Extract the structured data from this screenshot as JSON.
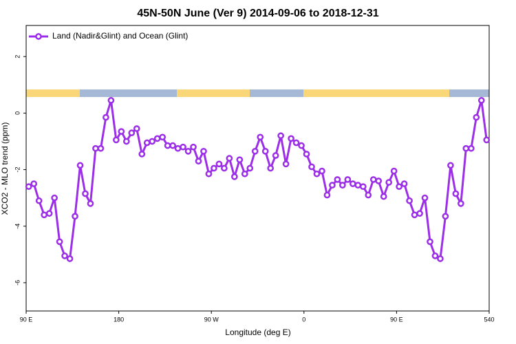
{
  "chart_data": {
    "type": "line",
    "title": "45N-50N June (Ver 9)   2014-09-06 to 2018-12-31",
    "x_label": "Longitude (deg E)",
    "y_label": "XCO2 - MLO trend (ppm)",
    "legend_position": "upper left",
    "xlim": [
      90,
      540
    ],
    "ylim": [
      -7,
      3.1
    ],
    "xticks": [
      {
        "value": 90,
        "label": "90 E"
      },
      180,
      {
        "value": 270,
        "label": "90 W"
      },
      {
        "value": 360,
        "label": "0"
      },
      {
        "value": 450,
        "label": "90 E"
      },
      540
    ],
    "yticks": [
      -6,
      -4,
      -2,
      0,
      2
    ],
    "x": [
      92.5,
      97.5,
      102.5,
      107.5,
      112.5,
      117.5,
      122.5,
      127.5,
      132.5,
      137.5,
      142.5,
      147.5,
      152.5,
      157.5,
      162.5,
      167.5,
      172.5,
      177.5,
      182.5,
      187.5,
      192.5,
      197.5,
      202.5,
      207.5,
      212.5,
      217.5,
      222.5,
      227.5,
      232.5,
      237.5,
      242.5,
      247.5,
      252.5,
      257.5,
      262.5,
      267.5,
      272.5,
      277.5,
      282.5,
      287.5,
      292.5,
      297.5,
      302.5,
      307.5,
      312.5,
      317.5,
      322.5,
      327.5,
      332.5,
      337.5,
      342.5,
      347.5,
      352.5,
      357.5,
      362.5,
      367.5,
      372.5,
      377.5,
      382.5,
      387.5,
      392.5,
      397.5,
      402.5,
      407.5,
      412.5,
      417.5,
      422.5,
      427.5,
      432.5,
      437.5,
      442.5,
      447.5,
      452.5,
      457.5,
      462.5,
      467.5,
      472.5,
      477.5,
      482.5,
      487.5,
      492.5,
      497.5,
      502.5,
      507.5,
      512.5,
      517.5,
      522.5,
      527.5,
      532.5,
      537.5
    ],
    "series": [
      {
        "name": "Land (Nadir&Glint) and Ocean (Glint)",
        "color": "#9b2ee6",
        "values": [
          -2.6,
          -2.5,
          -3.1,
          -3.6,
          -3.55,
          -3.0,
          -4.55,
          -5.05,
          -5.15,
          -3.65,
          -1.85,
          -2.85,
          -3.2,
          -1.25,
          -1.25,
          -0.15,
          0.45,
          -0.95,
          -0.65,
          -1.0,
          -0.7,
          -0.55,
          -1.45,
          -1.05,
          -1.0,
          -0.9,
          -0.85,
          -1.15,
          -1.15,
          -1.25,
          -1.2,
          -1.35,
          -1.2,
          -1.7,
          -1.35,
          -2.15,
          -1.95,
          -1.8,
          -1.95,
          -1.6,
          -2.25,
          -1.65,
          -2.15,
          -1.95,
          -1.35,
          -0.85,
          -1.35,
          -1.95,
          -1.5,
          -0.8,
          -1.8,
          -0.9,
          -1.05,
          -1.15,
          -1.45,
          -1.9,
          -2.15,
          -2.05,
          -2.9,
          -2.55,
          -2.35,
          -2.55,
          -2.35,
          -2.5,
          -2.55,
          -2.6,
          -2.9,
          -2.35,
          -2.4,
          -2.95,
          -2.45,
          -2.05,
          -2.6,
          -2.5,
          -3.1,
          -3.6,
          -3.55,
          -3.0,
          -4.55,
          -5.05,
          -5.15,
          -3.65,
          -1.85,
          -2.85,
          -3.2,
          -1.25,
          -1.25,
          -0.15,
          0.45,
          -0.95
        ]
      }
    ]
  }
}
